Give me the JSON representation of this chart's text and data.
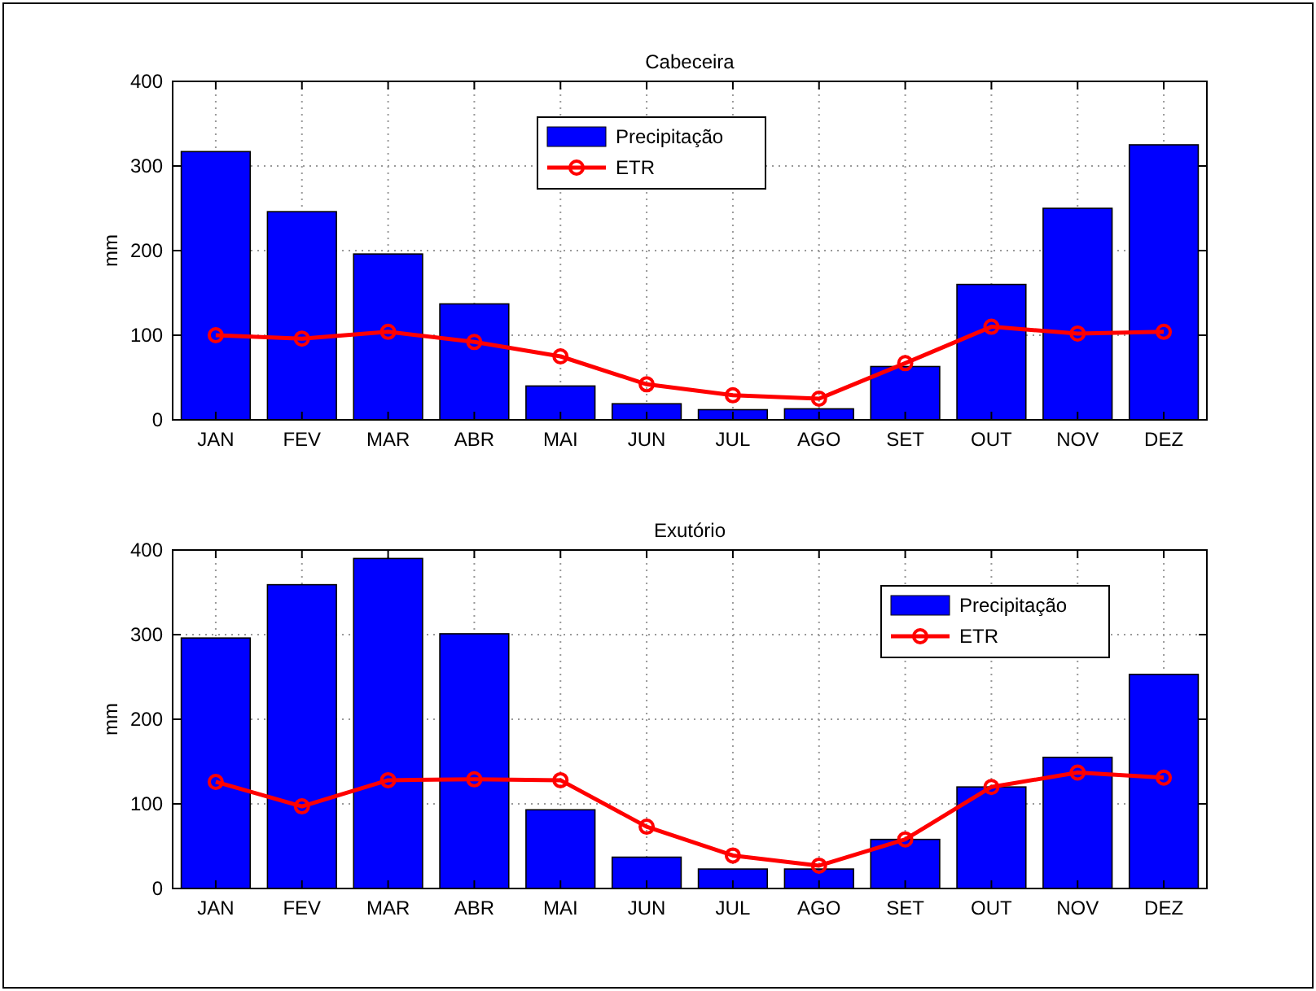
{
  "chart_data": [
    {
      "type": "bar",
      "title": "Cabeceira",
      "ylabel": "mm",
      "categories": [
        "JAN",
        "FEV",
        "MAR",
        "ABR",
        "MAI",
        "JUN",
        "JUL",
        "AGO",
        "SET",
        "OUT",
        "NOV",
        "DEZ"
      ],
      "ylim": [
        0,
        400
      ],
      "yticks": [
        0,
        100,
        200,
        300,
        400
      ],
      "grid": true,
      "legend": "top",
      "series": [
        {
          "name": "Precipitação",
          "color": "#0000ff",
          "values": [
            317,
            246,
            196,
            137,
            40,
            19,
            12,
            13,
            63,
            160,
            250,
            325
          ]
        },
        {
          "name": "ETR",
          "type": "line",
          "color": "#ff0000",
          "marker": "circle",
          "line_style": "solid",
          "values": [
            100,
            96,
            104,
            92,
            75,
            42,
            29,
            25,
            67,
            110,
            102,
            104
          ]
        }
      ]
    },
    {
      "type": "bar",
      "title": "Exutório",
      "ylabel": "mm",
      "categories": [
        "JAN",
        "FEV",
        "MAR",
        "ABR",
        "MAI",
        "JUN",
        "JUL",
        "AGO",
        "SET",
        "OUT",
        "NOV",
        "DEZ"
      ],
      "ylim": [
        0,
        400
      ],
      "yticks": [
        0,
        100,
        200,
        300,
        400
      ],
      "grid": true,
      "legend": "top right",
      "series": [
        {
          "name": "Precipitação",
          "color": "#0000ff",
          "values": [
            296,
            359,
            390,
            301,
            93,
            37,
            23,
            23,
            58,
            120,
            155,
            253
          ]
        },
        {
          "name": "ETR",
          "type": "line",
          "color": "#ff0000",
          "marker": "circle",
          "line_style": "solid",
          "values": [
            126,
            97,
            128,
            129,
            128,
            73,
            39,
            27,
            58,
            120,
            137,
            131
          ]
        }
      ]
    }
  ]
}
